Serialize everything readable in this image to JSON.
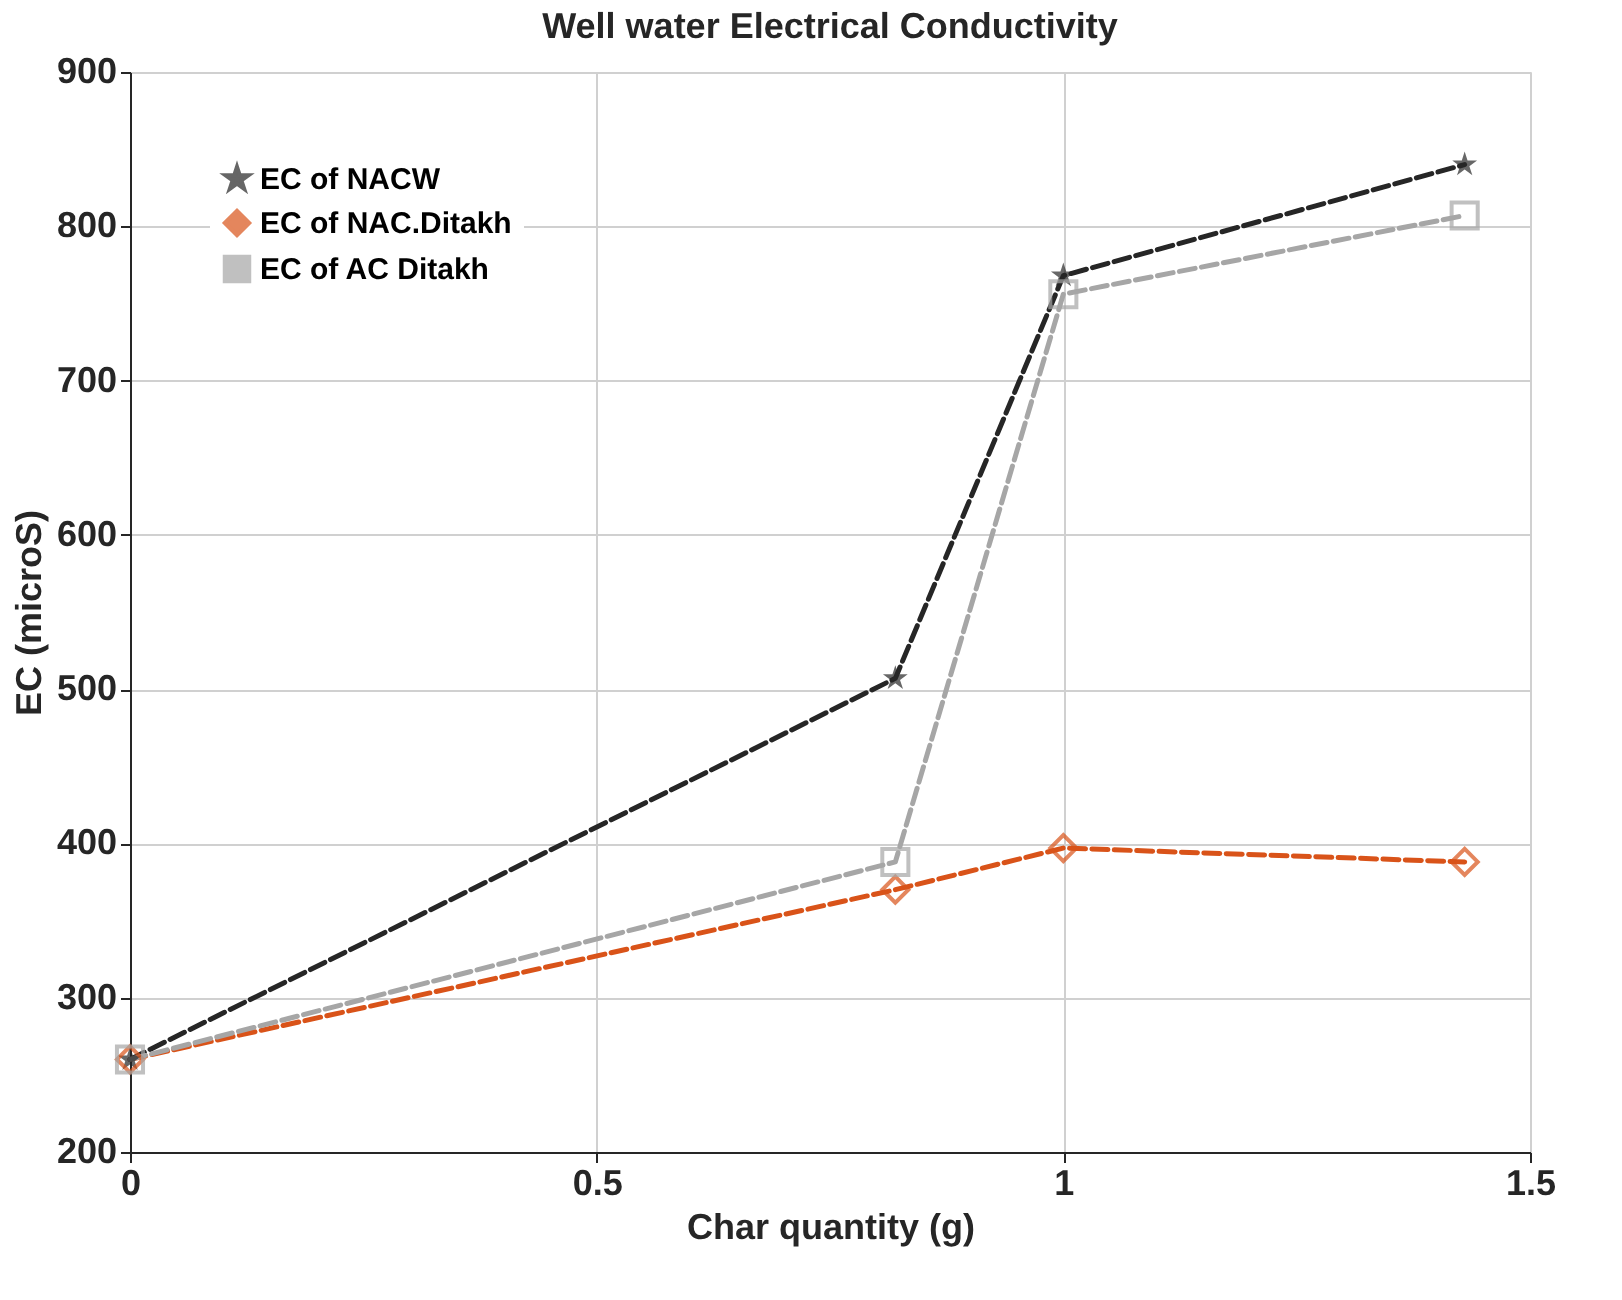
{
  "chart_data": {
    "type": "line",
    "title": "Well water Electrical Conductivity",
    "xlabel": "Char quantity (g)",
    "ylabel": "EC (microS)",
    "xlim": [
      0,
      1.5
    ],
    "xticks": [
      0,
      0.5,
      1,
      1.5
    ],
    "ylim": [
      200,
      900
    ],
    "yticks": [
      200,
      300,
      400,
      500,
      600,
      700,
      800,
      900
    ],
    "grid": true,
    "legend": "top left",
    "line_style": "dashed",
    "series": [
      {
        "name": "EC of NACW",
        "color": "#262626",
        "marker": "star",
        "x": [
          0,
          0.82,
          1,
          1.43
        ],
        "values": [
          260,
          507,
          768,
          840
        ]
      },
      {
        "name": "EC of NAC.Ditakh",
        "color": "#d95319",
        "marker": "diamond",
        "x": [
          0,
          0.82,
          1,
          1.43
        ],
        "values": [
          260,
          370,
          397,
          388
        ]
      },
      {
        "name": "EC of AC Ditakh",
        "color": "#a6a6a6",
        "marker": "square",
        "x": [
          0,
          0.82,
          1,
          1.43
        ],
        "values": [
          260,
          388,
          756,
          807
        ]
      }
    ]
  }
}
